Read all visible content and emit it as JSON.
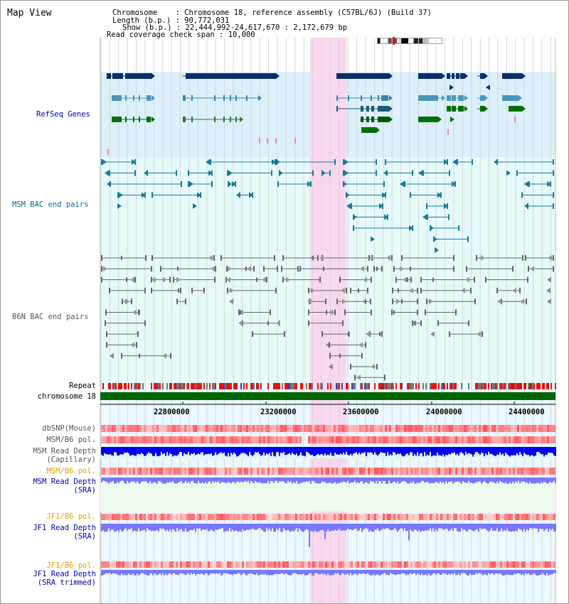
{
  "header": {
    "title": "Map View",
    "chromosome_label": "Chromosome",
    "chromosome_value": "Chromosome 18, reference assembly (C57BL/6J) (Build 37)",
    "length_label": "Length (b.p.)",
    "length_value": "90,772,031",
    "show_label": "Show (b.p.)",
    "show_value": "22,444,992-24,617,670 : 2,172,679 bp",
    "coverage_label": "Read coverage check span",
    "coverage_value": "10,000"
  },
  "tracks": {
    "refseq": "RefSeq Genes",
    "msm_bac": "MSM BAC end pairs",
    "b6n_bac": "B6N BAC end pairs",
    "repeat": "Repeat",
    "chromosome": "chromosome 18",
    "dbsnp": "dbSNP(Mouse)",
    "msm_b6_pol_1": "MSM/B6 pol.",
    "msm_read_depth_cap_1": "MSM Read Depth",
    "msm_read_depth_cap_2": "(Capillary)",
    "msm_b6_pol_2": "MSM/B6 pol.",
    "msm_read_depth_sra_1": "MSM Read Depth",
    "msm_read_depth_sra_2": "(SRA)",
    "jf1_b6_pol_1": "JF1/B6 pol.",
    "jf1_read_depth_sra_1": "JF1 Read Depth",
    "jf1_read_depth_sra_2": "(SRA)",
    "jf1_b6_pol_2": "JF1/B6 pol.",
    "jf1_read_depth_trim_1": "JF1 Read Depth",
    "jf1_read_depth_trim_2": "(SRA trimmed)"
  },
  "axis": {
    "ticks": [
      "22800000",
      "23200000",
      "23600000",
      "24000000",
      "24400000"
    ]
  },
  "colors": {
    "refseq_bg": "#dbf0fa",
    "msm_bg": "#e6fafa",
    "highlight": "#f9d8ef",
    "refseq_label": "#0000aa",
    "msm_label": "#006a8a",
    "b6n_label": "#555555",
    "orange_label": "#e6a000",
    "navy_gene": "#0c2d6b",
    "teal_gene": "#4a98b8",
    "green_gene": "#007000",
    "msm_pair": "#1a7a99",
    "b6n_pair": "#666666",
    "chrom_green": "#006600",
    "depth_blue": "#0000ee",
    "depth_light": "#7777ff"
  }
}
